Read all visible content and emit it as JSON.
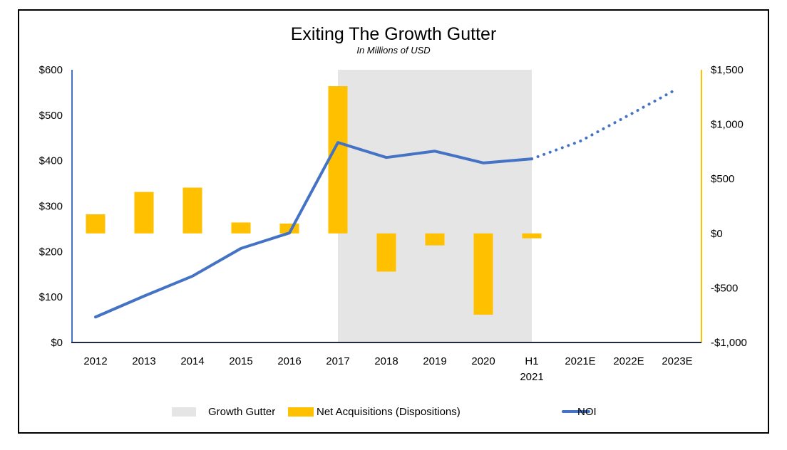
{
  "chart_data": {
    "type": "bar",
    "title": "Exiting The Growth Gutter",
    "subtitle": "In Millions of USD",
    "xlabel": "",
    "ylabel": "",
    "categories": [
      "2012",
      "2013",
      "2014",
      "2015",
      "2016",
      "2017",
      "2018",
      "2019",
      "2020",
      "H1 2021",
      "2021E",
      "2022E",
      "2023E"
    ],
    "category_labels": [
      [
        "2012"
      ],
      [
        "2013"
      ],
      [
        "2014"
      ],
      [
        "2015"
      ],
      [
        "2016"
      ],
      [
        "2017"
      ],
      [
        "2018"
      ],
      [
        "2019"
      ],
      [
        "2020"
      ],
      [
        "H1",
        "2021"
      ],
      [
        "2021E"
      ],
      [
        "2022E"
      ],
      [
        "2023E"
      ]
    ],
    "y_left": {
      "range": [
        0,
        600
      ],
      "ticks": [
        0,
        100,
        200,
        300,
        400,
        500,
        600
      ],
      "tick_labels": [
        "$0",
        "$100",
        "$200",
        "$300",
        "$400",
        "$500",
        "$600"
      ]
    },
    "y_right": {
      "range": [
        -1000,
        1500
      ],
      "ticks": [
        -1000,
        -500,
        0,
        500,
        1000,
        1500
      ],
      "tick_labels": [
        "-$1,000",
        "-$500",
        "$0",
        "$500",
        "$1,000",
        "$1,500"
      ]
    },
    "series": [
      {
        "name": "Growth Gutter",
        "type": "shaded-region",
        "from": "2017",
        "to": "H1 2021",
        "color": "#e5e5e5"
      },
      {
        "name": "Net Acquisitions (Dispositions)",
        "type": "bar",
        "axis": "right",
        "color": "#ffc000",
        "values": [
          175,
          380,
          420,
          100,
          90,
          1350,
          -350,
          -110,
          -745,
          -45,
          null,
          null,
          null
        ]
      },
      {
        "name": "NOI",
        "type": "line",
        "axis": "left",
        "color": "#4472c4",
        "values": [
          56,
          102,
          146,
          207,
          241,
          440,
          407,
          421,
          395,
          404,
          443,
          500,
          558
        ],
        "estimated_from_index": 9
      }
    ],
    "legend": {
      "position": "bottom",
      "items": [
        {
          "label": "Growth Gutter",
          "swatch": "box",
          "color": "#e5e5e5"
        },
        {
          "label": "Net Acquisitions (Dispositions)",
          "swatch": "box",
          "color": "#ffc000"
        },
        {
          "label": "NOI",
          "swatch": "line",
          "color": "#4472c4"
        }
      ]
    },
    "grid": false,
    "axis_colors": {
      "left": "#4472c4",
      "right": "#ffc000",
      "x": "#1f2a44"
    }
  }
}
